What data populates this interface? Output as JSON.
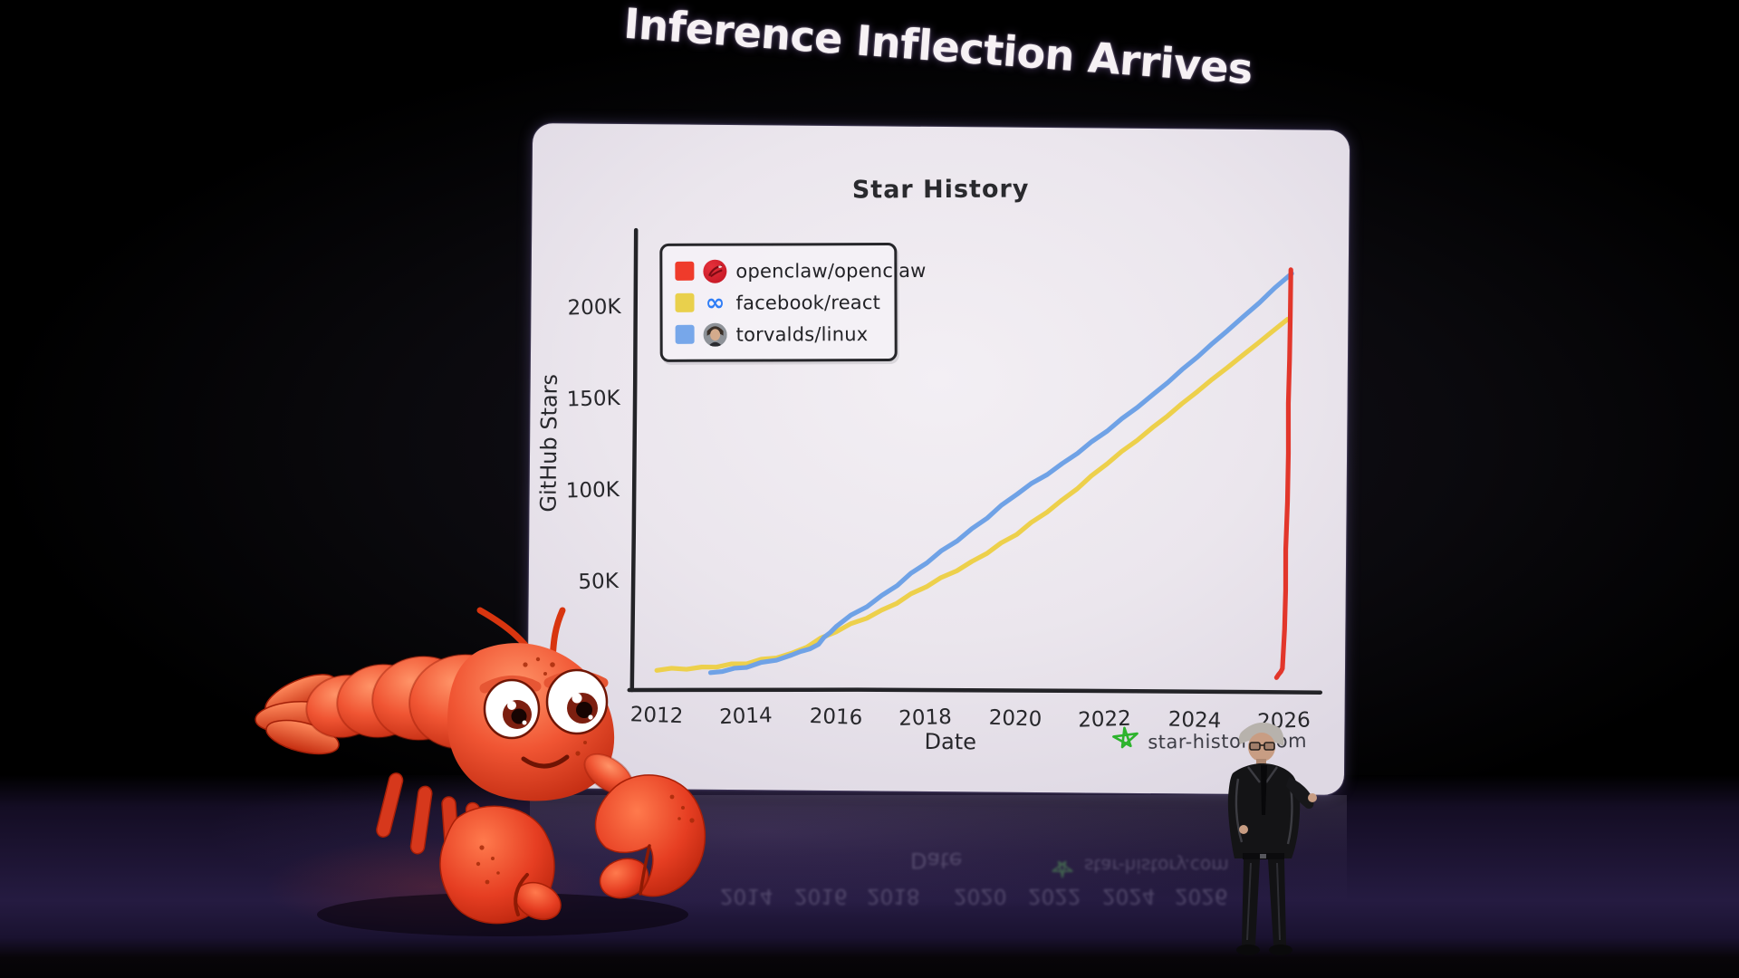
{
  "title": "Inference Inflection Arrives",
  "slide": {
    "chart_title": "Star History",
    "legend": {
      "items": [
        {
          "label": "openclaw/openclaw",
          "swatch_color": "#ef3b2b",
          "avatar_icon": "openclaw-lobster-avatar"
        },
        {
          "label": "facebook/react",
          "swatch_color": "#e9d04c",
          "avatar_icon": "meta-infinity-logo"
        },
        {
          "label": "torvalds/linux",
          "swatch_color": "#77a7ea",
          "avatar_icon": "torvalds-photo-avatar"
        }
      ]
    },
    "watermark": {
      "icon": "green-star-icon",
      "icon_color": "#2db32d",
      "text": "star-history.com"
    }
  },
  "chart_data": {
    "type": "line",
    "title": "Star History",
    "xlabel": "Date",
    "ylabel": "GitHub Stars",
    "x_ticks": [
      2012,
      2014,
      2016,
      2018,
      2020,
      2022,
      2024,
      2026
    ],
    "y_ticks": [
      {
        "value": 50000,
        "label": "50K"
      },
      {
        "value": 100000,
        "label": "100K"
      },
      {
        "value": 150000,
        "label": "150K"
      },
      {
        "value": 200000,
        "label": "200K"
      }
    ],
    "xlim": [
      2011.45,
      2026.8
    ],
    "ylim": [
      0,
      240000
    ],
    "grid": false,
    "legend_position": "top-left",
    "series": [
      {
        "name": "facebook/react",
        "color": "#edd04b",
        "points": [
          [
            2012,
            1000
          ],
          [
            2013,
            3000
          ],
          [
            2014,
            5000
          ],
          [
            2015,
            11000
          ],
          [
            2016,
            23000
          ],
          [
            2017,
            35000
          ],
          [
            2018,
            48000
          ],
          [
            2019,
            62000
          ],
          [
            2020,
            77000
          ],
          [
            2021,
            96000
          ],
          [
            2022,
            116000
          ],
          [
            2023,
            136000
          ],
          [
            2024,
            156000
          ],
          [
            2025,
            176000
          ],
          [
            2026,
            196000
          ]
        ]
      },
      {
        "name": "torvalds/linux",
        "color": "#6fa2e6",
        "points": [
          [
            2013.2,
            0
          ],
          [
            2014,
            3000
          ],
          [
            2015,
            10000
          ],
          [
            2015.6,
            16000
          ],
          [
            2016,
            26000
          ],
          [
            2017,
            43000
          ],
          [
            2018,
            61000
          ],
          [
            2019,
            80000
          ],
          [
            2020,
            99000
          ],
          [
            2021,
            116000
          ],
          [
            2022,
            134000
          ],
          [
            2023,
            154000
          ],
          [
            2024,
            175000
          ],
          [
            2025,
            197000
          ],
          [
            2026.08,
            221000
          ]
        ]
      },
      {
        "name": "openclaw/openclaw",
        "color": "#e2362b",
        "points": [
          [
            2025.82,
            0
          ],
          [
            2025.95,
            5000
          ],
          [
            2026.0,
            70000
          ],
          [
            2026.03,
            150000
          ],
          [
            2026.06,
            223000
          ]
        ]
      }
    ]
  }
}
